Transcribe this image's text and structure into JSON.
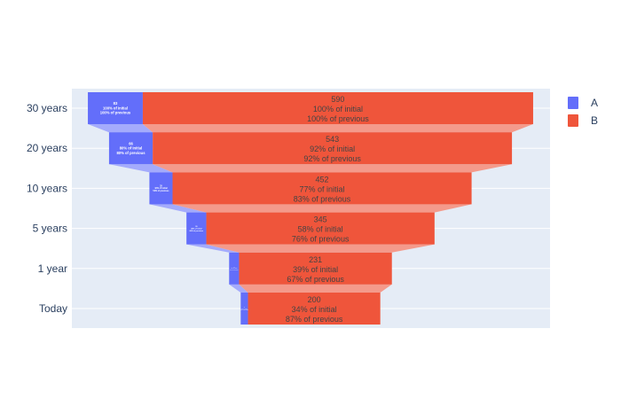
{
  "chart_data": {
    "type": "funnel",
    "categories": [
      "30 years",
      "20 years",
      "10 years",
      "5 years",
      "1 year",
      "Today"
    ],
    "series": [
      {
        "name": "A",
        "color": "#636efa",
        "connector_color": "#a4abfc",
        "values": [
          83,
          66,
          35,
          30,
          15,
          11
        ],
        "text": [
          [
            "83",
            "100% of initial",
            "100% of previous"
          ],
          [
            "66",
            "80% of initial",
            "80% of previous"
          ],
          [
            "35",
            "42% of initial",
            "53% of previous"
          ],
          [
            "30",
            "36% of initial",
            "86% of previous"
          ],
          [
            "15",
            "18% of initial",
            "50% of previous"
          ],
          [
            "11",
            "13% of initial",
            "73% of previous"
          ]
        ]
      },
      {
        "name": "B",
        "color": "#ef553b",
        "connector_color": "#f49a8b",
        "values": [
          590,
          543,
          452,
          345,
          231,
          200
        ],
        "text": [
          [
            "590",
            "100% of initial",
            "100% of previous"
          ],
          [
            "543",
            "92% of initial",
            "92% of previous"
          ],
          [
            "452",
            "77% of initial",
            "83% of previous"
          ],
          [
            "345",
            "58% of initial",
            "76% of previous"
          ],
          [
            "231",
            "39% of initial",
            "67% of previous"
          ],
          [
            "200",
            "34% of initial",
            "87% of previous"
          ]
        ]
      }
    ],
    "grid": true,
    "legend_position": "top-right",
    "plot_background": "#e5ecf6"
  }
}
